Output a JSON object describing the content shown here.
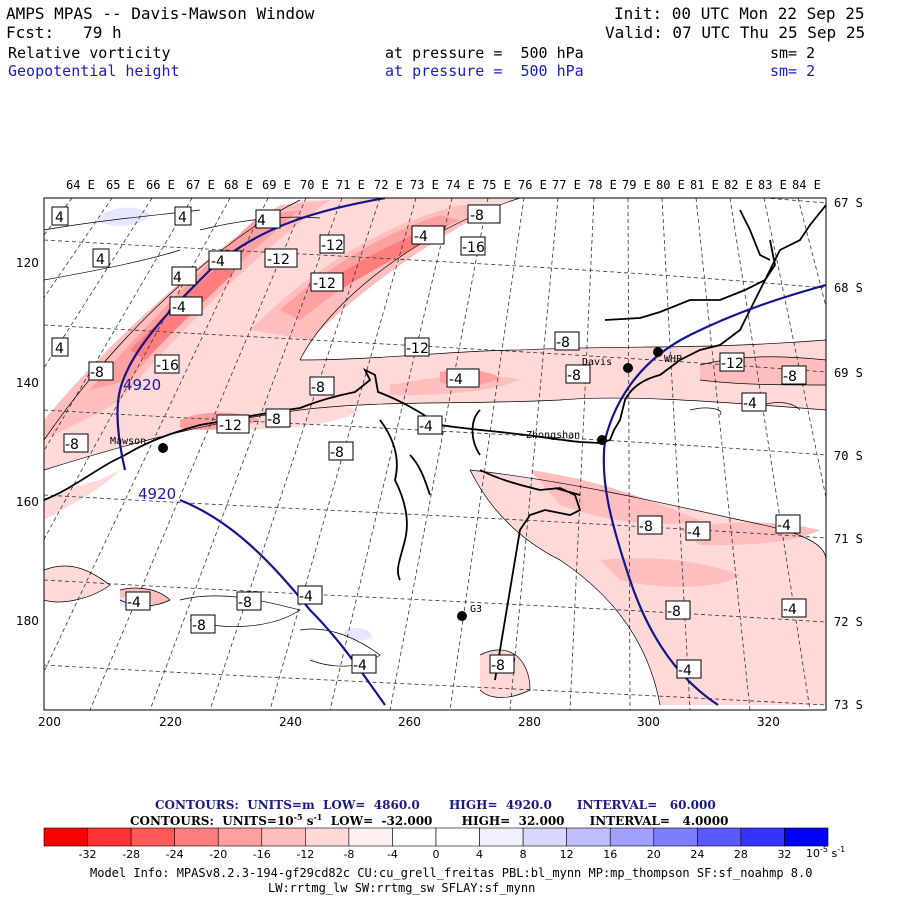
{
  "header": {
    "title": "AMPS MPAS -- Davis-Mawson Window",
    "init": "Init: 00 UTC Mon 22 Sep 25",
    "fcst": "Fcst:   79 h",
    "valid": "Valid: 07 UTC Thu 25 Sep 25",
    "field1": "Relative vorticity",
    "field1_level": "at pressure =  500 hPa",
    "field1_sm": "sm= 2",
    "field2": "Geopotential height",
    "field2_level": "at pressure =  500 hPa",
    "field2_sm": "sm= 2"
  },
  "map": {
    "lon_labels": [
      "64 E",
      "65 E",
      "66 E",
      "67 E",
      "68 E",
      "69 E",
      "70 E",
      "71 E",
      "72 E",
      "73 E",
      "74 E",
      "75 E",
      "76 E",
      "77 E",
      "78 E",
      "79 E",
      "80 E",
      "81 E",
      "82 E",
      "83 E",
      "84 E"
    ],
    "lat_labels": [
      "67 S",
      "68 S",
      "69 S",
      "70 S",
      "71 S",
      "72 S",
      "73 S"
    ],
    "x_ticks": [
      "200",
      "220",
      "240",
      "260",
      "280",
      "300",
      "320"
    ],
    "y_ticks": [
      "120",
      "140",
      "160",
      "180"
    ],
    "stations": [
      {
        "name": "Mawson"
      },
      {
        "name": "Davis"
      },
      {
        "name": "WHP"
      },
      {
        "name": "Zhongshan"
      },
      {
        "name": "G3"
      }
    ],
    "height_labels": [
      "4920",
      "4920"
    ],
    "vort_labels": [
      "4",
      "4",
      "4",
      "4",
      "4",
      "4",
      "-8",
      "-12",
      "-4",
      "-16",
      "-4",
      "-12",
      "-12",
      "-4",
      "-12",
      "-16",
      "-8",
      "-8",
      "-4",
      "-8",
      "-8",
      "-12",
      "-8",
      "-8",
      "-12",
      "-8",
      "-4",
      "-4",
      "-8",
      "-8",
      "-4",
      "-4",
      "-4",
      "-8",
      "-4",
      "-8",
      "-8",
      "-4",
      "-4",
      "-8",
      "-4",
      "-8",
      "-4",
      "-4",
      "-4",
      "-8",
      "-4",
      "-4",
      "-8"
    ],
    "colors": {
      "height_contour": "#14148c",
      "coast": "#000000",
      "grid": "#333333"
    }
  },
  "legend": {
    "contours1": "CONTOURS:  UNITS=m  LOW=  4860.0       HIGH=  4920.0      INTERVAL=   60.000",
    "contours2": "CONTOURS:  UNITS=10",
    "contours2_exp": "-5",
    "contours2_rest": " s",
    "contours2_exp2": "-1",
    "contours2_tail": "  LOW=  -32.000       HIGH=  32.000      INTERVAL=   4.0000",
    "colorbar": [
      "#ff0000",
      "#ff3333",
      "#ff5959",
      "#ff7d7d",
      "#ffa0a0",
      "#ffbebe",
      "#ffd8d8",
      "#fff0f0",
      "#ffffff",
      "#ffffff",
      "#f0f0ff",
      "#d8d8ff",
      "#bebeff",
      "#a0a0ff",
      "#7d7dff",
      "#5959ff",
      "#3333ff",
      "#0000ff"
    ],
    "tick_labels": [
      "-32",
      "-28",
      "-24",
      "-20",
      "-16",
      "-12",
      "-8",
      "-4",
      "0",
      "4",
      "8",
      "12",
      "16",
      "20",
      "24",
      "28",
      "32"
    ],
    "unit": "10",
    "unit_exp": "-5",
    "unit_s": " s",
    "unit_exp2": "-1"
  },
  "footer": {
    "model_info": "Model Info: MPASv8.2.3-194-gf29cd82c CU:cu_grell_freitas PBL:bl_mynn MP:mp_thompson SF:sf_noahmp 8.0",
    "model_info2": "LW:rrtmg_lw SW:rrtmg_sw SFLAY:sf_mynn"
  }
}
